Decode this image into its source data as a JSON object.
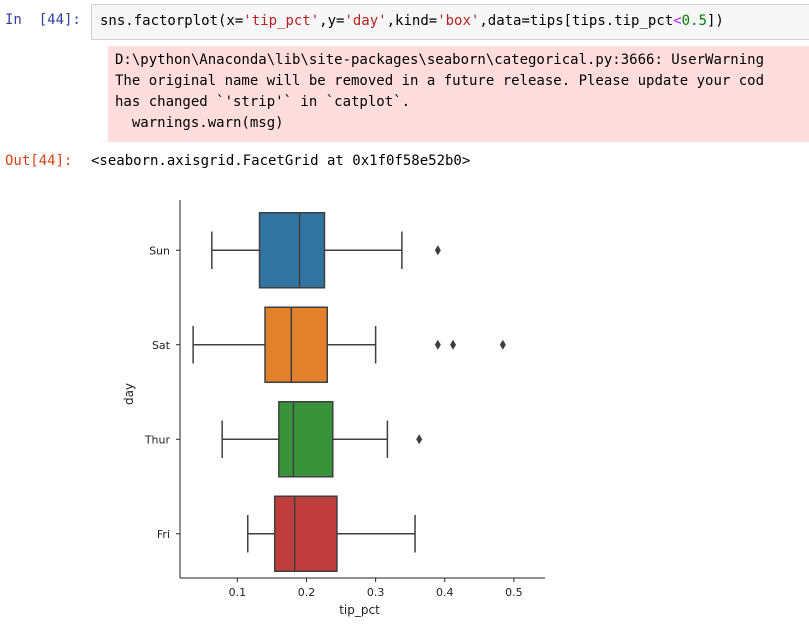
{
  "input_cell": {
    "prompt": "In  [44]:",
    "code_parts": {
      "fn": "sns.factorplot(x=",
      "arg_x": "'tip_pct'",
      "sep1": ",y=",
      "arg_y": "'day'",
      "sep2": ",kind=",
      "arg_kind": "'box'",
      "sep3": ",data=tips[tips.tip_pct",
      "op": "<",
      "num": "0.5",
      "end": "])"
    }
  },
  "stderr": {
    "lines": [
      "D:\\python\\Anaconda\\lib\\site-packages\\seaborn\\categorical.py:3666: UserWarning",
      "The original name will be removed in a future release. Please update your cod",
      "has changed `'strip'` in `catplot`.",
      "  warnings.warn(msg)"
    ]
  },
  "output_cell": {
    "prompt": "Out[44]:",
    "text": "<seaborn.axisgrid.FacetGrid at 0x1f0f58e52b0>"
  },
  "colors": {
    "Sun": "#3274a1",
    "Sat": "#e1812c",
    "Thur": "#3a923a",
    "Fri": "#c03d3e",
    "line": "#3f3f3f"
  },
  "chart_data": {
    "type": "box",
    "xlabel": "tip_pct",
    "ylabel": "day",
    "xticks": [
      0.1,
      0.2,
      0.3,
      0.4,
      0.5
    ],
    "xtick_labels": [
      "0.1",
      "0.2",
      "0.3",
      "0.4",
      "0.5"
    ],
    "xlim": [
      0.017,
      0.545
    ],
    "categories": [
      "Sun",
      "Sat",
      "Thur",
      "Fri"
    ],
    "boxes": [
      {
        "day": "Sun",
        "whisker_low": 0.063,
        "q1": 0.132,
        "median": 0.19,
        "q3": 0.226,
        "whisker_high": 0.338,
        "outliers": [
          0.39
        ]
      },
      {
        "day": "Sat",
        "whisker_low": 0.036,
        "q1": 0.14,
        "median": 0.178,
        "q3": 0.23,
        "whisker_high": 0.3,
        "outliers": [
          0.39,
          0.412,
          0.484
        ]
      },
      {
        "day": "Thur",
        "whisker_low": 0.078,
        "q1": 0.16,
        "median": 0.181,
        "q3": 0.238,
        "whisker_high": 0.317,
        "outliers": [
          0.363
        ]
      },
      {
        "day": "Fri",
        "whisker_low": 0.115,
        "q1": 0.154,
        "median": 0.183,
        "q3": 0.244,
        "whisker_high": 0.357,
        "outliers": []
      }
    ]
  }
}
